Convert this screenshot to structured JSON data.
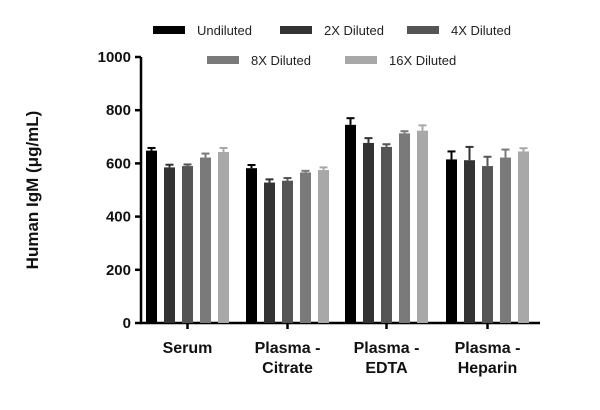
{
  "chart_data": {
    "type": "bar",
    "title": "",
    "ylabel": "Human IgM (μg/mL)",
    "xlabel": "",
    "ylim": [
      0,
      1000
    ],
    "yticks": [
      0,
      200,
      400,
      600,
      800,
      1000
    ],
    "grid": false,
    "legend_position": "top",
    "categories": [
      [
        "Serum"
      ],
      [
        "Plasma -",
        "Citrate"
      ],
      [
        "Plasma -",
        "EDTA"
      ],
      [
        "Plasma -",
        "Heparin"
      ]
    ],
    "series": [
      {
        "name": "Undiluted",
        "color": "#000000",
        "values": [
          648,
          582,
          745,
          615
        ],
        "errors": [
          10,
          12,
          25,
          30
        ]
      },
      {
        "name": "2X Diluted",
        "color": "#333333",
        "values": [
          585,
          528,
          677,
          612
        ],
        "errors": [
          10,
          12,
          18,
          50
        ]
      },
      {
        "name": "4X Diluted",
        "color": "#555555",
        "values": [
          590,
          535,
          662,
          590
        ],
        "errors": [
          6,
          10,
          10,
          35
        ]
      },
      {
        "name": "8X Diluted",
        "color": "#7a7a7a",
        "values": [
          622,
          566,
          713,
          622
        ],
        "errors": [
          15,
          6,
          8,
          30
        ]
      },
      {
        "name": "16X Diluted",
        "color": "#a8a8a8",
        "values": [
          643,
          575,
          723,
          645
        ],
        "errors": [
          15,
          10,
          20,
          12
        ]
      }
    ]
  }
}
